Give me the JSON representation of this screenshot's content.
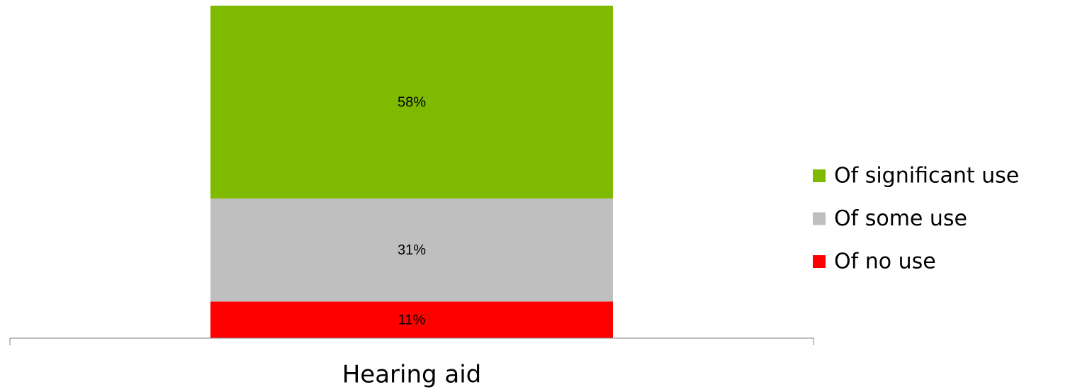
{
  "chart_data": {
    "type": "stacked_bar",
    "categories": [
      "Hearing aid"
    ],
    "series": [
      {
        "name": "Of significant use",
        "color": "#7fba00",
        "values": [
          58
        ],
        "value_labels": [
          "58%"
        ]
      },
      {
        "name": "Of some use",
        "color": "#bfbfbf",
        "values": [
          31
        ],
        "value_labels": [
          "31%"
        ]
      },
      {
        "name": "Of no use",
        "color": "#ff0000",
        "values": [
          11
        ],
        "value_labels": [
          "11%"
        ]
      }
    ],
    "ylim": [
      0,
      100
    ],
    "legend": "right"
  }
}
